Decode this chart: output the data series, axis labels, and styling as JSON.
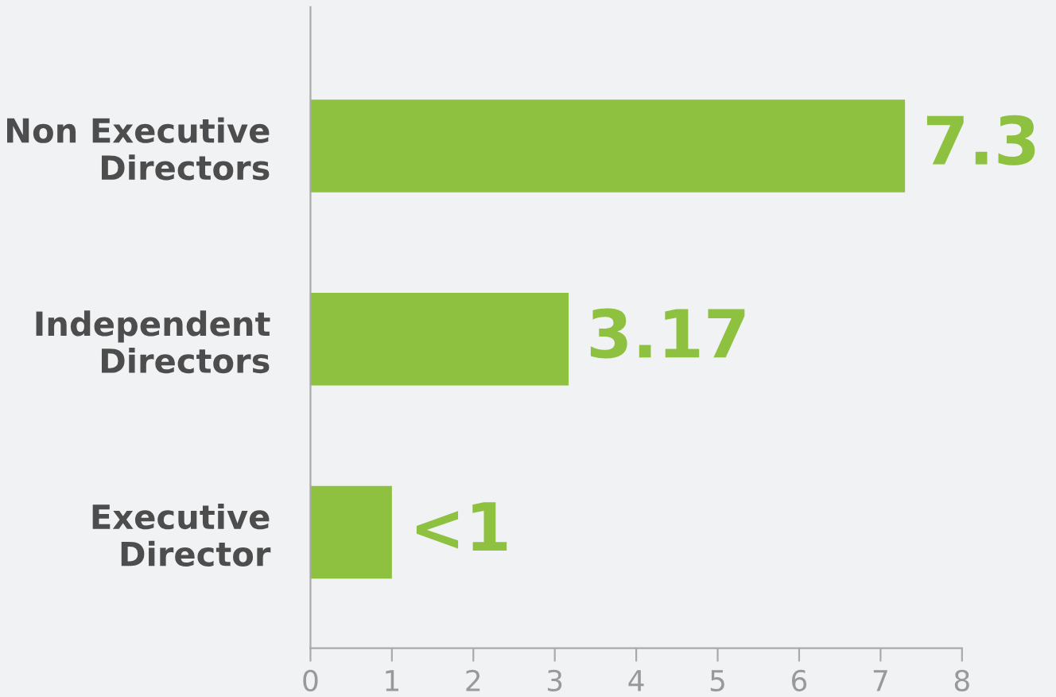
{
  "chart_data": {
    "type": "bar",
    "orientation": "horizontal",
    "categories": [
      "Non Executive\nDirectors",
      "Independent\nDirectors",
      "Executive\nDirector"
    ],
    "values": [
      7.3,
      3.17,
      1
    ],
    "value_labels": [
      "7.3",
      "3.17",
      "<1"
    ],
    "color": "#8dc13f",
    "xlim": [
      0,
      8
    ],
    "xticks": [
      0,
      1,
      2,
      3,
      4,
      5,
      6,
      7,
      8
    ],
    "grid": false,
    "legend": false
  }
}
